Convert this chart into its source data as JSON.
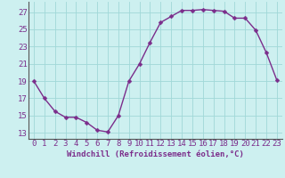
{
  "x": [
    0,
    1,
    2,
    3,
    4,
    5,
    6,
    7,
    8,
    9,
    10,
    11,
    12,
    13,
    14,
    15,
    16,
    17,
    18,
    19,
    20,
    21,
    22,
    23
  ],
  "y": [
    19,
    17,
    15.5,
    14.8,
    14.8,
    14.2,
    13.3,
    13.1,
    15.0,
    19.0,
    21.0,
    23.5,
    25.8,
    26.5,
    27.2,
    27.2,
    27.3,
    27.2,
    27.1,
    26.3,
    26.3,
    24.9,
    22.3,
    19.1
  ],
  "xlabel": "Windchill (Refroidissement éolien,°C)",
  "xlim": [
    -0.5,
    23.5
  ],
  "ylim": [
    12.3,
    28.2
  ],
  "yticks": [
    13,
    15,
    17,
    19,
    21,
    23,
    25,
    27
  ],
  "xticks": [
    0,
    1,
    2,
    3,
    4,
    5,
    6,
    7,
    8,
    9,
    10,
    11,
    12,
    13,
    14,
    15,
    16,
    17,
    18,
    19,
    20,
    21,
    22,
    23
  ],
  "line_color": "#7b2d8b",
  "marker_color": "#7b2d8b",
  "bg_color": "#cdf0f0",
  "grid_color": "#a0d8d8",
  "xlabel_fontsize": 6.5,
  "tick_fontsize": 6.5,
  "marker_size": 2.5,
  "linewidth": 1.0
}
